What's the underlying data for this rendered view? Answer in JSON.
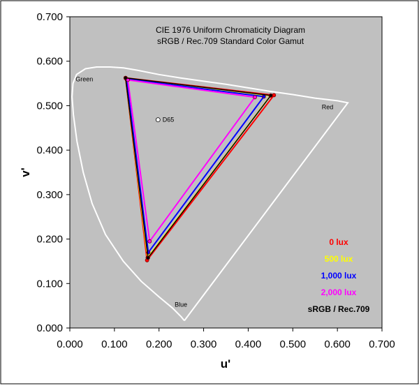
{
  "chart_data": {
    "type": "scatter",
    "title": "CIE 1976 Uniform Chromaticity Diagram",
    "subtitle": "sRGB / Rec.709 Standard Color Gamut",
    "xlabel": "u'",
    "ylabel": "v'",
    "xlim": [
      0,
      0.7
    ],
    "ylim": [
      0,
      0.7
    ],
    "x_ticks": [
      "0.000",
      "0.100",
      "0.200",
      "0.300",
      "0.400",
      "0.500",
      "0.600",
      "0.700"
    ],
    "y_ticks": [
      "0.000",
      "0.100",
      "0.200",
      "0.300",
      "0.400",
      "0.500",
      "0.600",
      "0.700"
    ],
    "grid": false,
    "legend_position": "bottom-right",
    "colors": {
      "plot_bg": "#c0c0c0",
      "locus": "#ffffff",
      "lux_0": "#ff0000",
      "lux_500": "#ffff00",
      "lux_1000": "#0000ff",
      "lux_2000": "#ff00ff",
      "srgb": "#000000"
    },
    "annotations": [
      {
        "label": "Green",
        "x": 0.013,
        "y": 0.555
      },
      {
        "label": "Red",
        "x": 0.565,
        "y": 0.492
      },
      {
        "label": "Blue",
        "x": 0.235,
        "y": 0.048
      },
      {
        "label": "D65",
        "x": 0.208,
        "y": 0.464
      }
    ],
    "white_point": {
      "label": "D65",
      "u": 0.1978,
      "v": 0.4683
    },
    "spectral_locus": [
      [
        0.2568,
        0.0165
      ],
      [
        0.25,
        0.025
      ],
      [
        0.23,
        0.045
      ],
      [
        0.2,
        0.07
      ],
      [
        0.16,
        0.105
      ],
      [
        0.12,
        0.15
      ],
      [
        0.08,
        0.21
      ],
      [
        0.05,
        0.28
      ],
      [
        0.03,
        0.35
      ],
      [
        0.016,
        0.42
      ],
      [
        0.008,
        0.48
      ],
      [
        0.005,
        0.52
      ],
      [
        0.007,
        0.55
      ],
      [
        0.015,
        0.57
      ],
      [
        0.035,
        0.583
      ],
      [
        0.06,
        0.587
      ],
      [
        0.09,
        0.587
      ],
      [
        0.12,
        0.585
      ],
      [
        0.15,
        0.58
      ],
      [
        0.2,
        0.57
      ],
      [
        0.25,
        0.562
      ],
      [
        0.3,
        0.555
      ],
      [
        0.35,
        0.548
      ],
      [
        0.4,
        0.54
      ],
      [
        0.45,
        0.532
      ],
      [
        0.5,
        0.525
      ],
      [
        0.55,
        0.517
      ],
      [
        0.6,
        0.511
      ],
      [
        0.6234,
        0.5065
      ],
      [
        0.2568,
        0.0165
      ]
    ],
    "series": [
      {
        "name": "0 lux",
        "color": "#ff0000",
        "points": [
          [
            0.125,
            0.5625
          ],
          [
            0.4578,
            0.5236
          ],
          [
            0.1732,
            0.1522
          ]
        ]
      },
      {
        "name": "500 lux",
        "color": "#ffff00",
        "points": [
          [
            0.1255,
            0.5615
          ],
          [
            0.45,
            0.5225
          ],
          [
            0.1745,
            0.158
          ]
        ]
      },
      {
        "name": "1,000 lux",
        "color": "#0000ff",
        "points": [
          [
            0.127,
            0.56
          ],
          [
            0.435,
            0.5205
          ],
          [
            0.176,
            0.17
          ]
        ]
      },
      {
        "name": "2,000 lux",
        "color": "#ff00ff",
        "points": [
          [
            0.13,
            0.558
          ],
          [
            0.415,
            0.519
          ],
          [
            0.179,
            0.195
          ]
        ]
      },
      {
        "name": "sRGB / Rec.709",
        "color": "#000000",
        "points": [
          [
            0.125,
            0.5625
          ],
          [
            0.4507,
            0.5229
          ],
          [
            0.1754,
            0.1579
          ]
        ]
      }
    ]
  }
}
